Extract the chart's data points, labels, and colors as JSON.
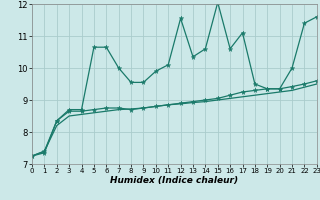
{
  "x": [
    0,
    1,
    2,
    3,
    4,
    5,
    6,
    7,
    8,
    9,
    10,
    11,
    12,
    13,
    14,
    15,
    16,
    17,
    18,
    19,
    20,
    21,
    22,
    23
  ],
  "line1": [
    7.25,
    7.35,
    8.35,
    8.7,
    8.7,
    10.65,
    10.65,
    10.0,
    9.55,
    9.55,
    9.9,
    10.1,
    11.55,
    10.35,
    10.6,
    12.05,
    10.6,
    11.1,
    9.5,
    9.35,
    9.35,
    10.0,
    11.4,
    11.6
  ],
  "line2": [
    7.25,
    7.4,
    8.35,
    8.65,
    8.65,
    8.7,
    8.75,
    8.75,
    8.7,
    8.75,
    8.8,
    8.85,
    8.9,
    8.95,
    9.0,
    9.05,
    9.15,
    9.25,
    9.3,
    9.35,
    9.35,
    9.42,
    9.5,
    9.6
  ],
  "line3": [
    7.25,
    7.4,
    8.2,
    8.5,
    8.55,
    8.6,
    8.65,
    8.7,
    8.72,
    8.75,
    8.8,
    8.85,
    8.88,
    8.92,
    8.95,
    9.0,
    9.05,
    9.1,
    9.15,
    9.2,
    9.25,
    9.3,
    9.4,
    9.5
  ],
  "color": "#1a7a6a",
  "bg_color": "#cce8e8",
  "grid_color": "#aacccc",
  "xlabel": "Humidex (Indice chaleur)",
  "ylim": [
    7,
    12
  ],
  "xlim": [
    0,
    23
  ],
  "yticks": [
    7,
    8,
    9,
    10,
    11,
    12
  ],
  "xticks": [
    0,
    1,
    2,
    3,
    4,
    5,
    6,
    7,
    8,
    9,
    10,
    11,
    12,
    13,
    14,
    15,
    16,
    17,
    18,
    19,
    20,
    21,
    22,
    23
  ]
}
